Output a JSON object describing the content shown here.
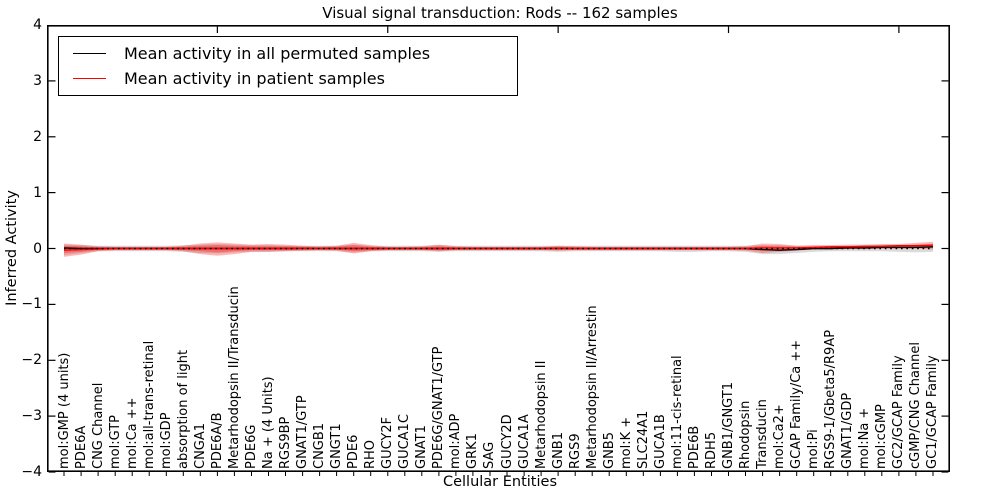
{
  "title": "Visual signal transduction: Rods -- 162 samples",
  "legend": {
    "items": [
      {
        "label": "Mean activity in all permuted samples",
        "color": "#000000"
      },
      {
        "label": "Mean activity in patient samples",
        "color": "#ff0000"
      }
    ]
  },
  "chart_data": {
    "type": "line",
    "title": "Visual signal transduction: Rods -- 162 samples",
    "xlabel": "Cellular Entities",
    "ylabel": "Inferred Activity",
    "ylim": [
      -4,
      4
    ],
    "yticks": [
      4,
      3,
      2,
      1,
      0,
      -1,
      -2,
      -3,
      -4
    ],
    "xticks_top": [
      10,
      20,
      30,
      40,
      50
    ],
    "grid": false,
    "legend_position": "upper left",
    "colors": {
      "permuted": "#000000",
      "patient": "#ff0000",
      "permuted_band": "#999999",
      "patient_band": "#ff0000",
      "zero_line": "#000000"
    },
    "categories": [
      "mol:GMP (4 units)",
      "PDE6A",
      "CNG Channel",
      "mol:GTP",
      "mol:Ca ++",
      "mol:all-trans-retinal",
      "mol:GDP",
      "absorption of light",
      "CNGA1",
      "PDE6A/B",
      "Metarhodopsin II/Transducin",
      "PDE6G",
      "Na + (4 Units)",
      "RGS9BP",
      "GNAT1/GTP",
      "CNGB1",
      "GNGT1",
      "PDE6",
      "RHO",
      "GUCY2F",
      "GUCA1C",
      "GNAT1",
      "PDE6G/GNAT1/GTP",
      "mol:ADP",
      "GRK1",
      "SAG",
      "GUCY2D",
      "GUCA1A",
      "Metarhodopsin II",
      "GNB1",
      "RGS9",
      "Metarhodopsin II/Arrestin",
      "GNB5",
      "mol:K +",
      "SLC24A1",
      "GUCA1B",
      "mol:11-cis-retinal",
      "PDE6B",
      "RDH5",
      "GNB1/GNGT1",
      "Rhodopsin",
      "Transducin",
      "mol:Ca2+",
      "GCAP Family/Ca ++",
      "mol:Pi",
      "RGS9-1/Gbeta5/R9AP",
      "GNAT1/GDP",
      "mol:Na +",
      "mol:cGMP",
      "GC2/GCAP Family",
      "cGMP/CNG Channel",
      "GC1/GCAP Family"
    ],
    "series": [
      {
        "name": "Mean activity in all permuted samples",
        "color": "#000000",
        "style": "solid",
        "values": [
          0.01,
          0,
          0,
          0,
          0,
          0,
          0,
          0,
          0,
          0,
          0,
          0,
          0,
          0,
          0,
          0,
          0,
          0,
          0,
          0,
          0,
          0,
          0,
          0,
          0,
          0,
          0,
          0,
          0,
          0,
          0,
          0,
          0,
          0,
          0,
          0,
          0,
          0,
          0,
          0,
          0,
          -0.02,
          -0.03,
          -0.02,
          0,
          0,
          0.01,
          0.01,
          0.02,
          0.02,
          0.02,
          0.03
        ]
      },
      {
        "name": "Mean activity in patient samples",
        "color": "#ff0000",
        "style": "solid",
        "values": [
          -0.03,
          -0.02,
          -0.01,
          0,
          0,
          0,
          0,
          0,
          0,
          0,
          0,
          0,
          0,
          0,
          0,
          0,
          0,
          0,
          0,
          0,
          0,
          0,
          0,
          0,
          0,
          0,
          0,
          0,
          0,
          0,
          0,
          0,
          0,
          0,
          0,
          0,
          0,
          0,
          0,
          0,
          0,
          0.01,
          0.01,
          0.01,
          0.02,
          0.03,
          0.03,
          0.04,
          0.04,
          0.05,
          0.05,
          0.06
        ]
      },
      {
        "name": "zero-reference",
        "color": "#000000",
        "style": "dotted",
        "values": [
          0,
          0,
          0,
          0,
          0,
          0,
          0,
          0,
          0,
          0,
          0,
          0,
          0,
          0,
          0,
          0,
          0,
          0,
          0,
          0,
          0,
          0,
          0,
          0,
          0,
          0,
          0,
          0,
          0,
          0,
          0,
          0,
          0,
          0,
          0,
          0,
          0,
          0,
          0,
          0,
          0,
          0,
          0,
          0,
          0,
          0,
          0,
          0,
          0,
          0,
          0,
          0
        ]
      }
    ],
    "bands": [
      {
        "name": "permuted-sample-range",
        "color": "#999999",
        "opacity": 0.35,
        "upper": [
          0.07,
          0.06,
          0.05,
          0.05,
          0.05,
          0.05,
          0.05,
          0.06,
          0.07,
          0.08,
          0.07,
          0.06,
          0.06,
          0.05,
          0.05,
          0.05,
          0.05,
          0.07,
          0.05,
          0.05,
          0.05,
          0.05,
          0.06,
          0.05,
          0.05,
          0.05,
          0.05,
          0.05,
          0.05,
          0.05,
          0.05,
          0.05,
          0.05,
          0.05,
          0.05,
          0.05,
          0.05,
          0.05,
          0.05,
          0.05,
          0.05,
          0.06,
          0.06,
          0.05,
          0.05,
          0.05,
          0.05,
          0.05,
          0.06,
          0.06,
          0.07,
          0.08
        ],
        "lower": [
          -0.12,
          -0.08,
          -0.05,
          -0.05,
          -0.05,
          -0.05,
          -0.05,
          -0.06,
          -0.08,
          -0.09,
          -0.07,
          -0.06,
          -0.06,
          -0.05,
          -0.05,
          -0.05,
          -0.05,
          -0.07,
          -0.05,
          -0.05,
          -0.05,
          -0.05,
          -0.06,
          -0.05,
          -0.05,
          -0.05,
          -0.05,
          -0.05,
          -0.05,
          -0.06,
          -0.05,
          -0.05,
          -0.05,
          -0.05,
          -0.05,
          -0.05,
          -0.06,
          -0.06,
          -0.05,
          -0.05,
          -0.06,
          -0.1,
          -0.1,
          -0.08,
          -0.06,
          -0.05,
          -0.05,
          -0.05,
          -0.05,
          -0.06,
          -0.07,
          -0.06
        ]
      },
      {
        "name": "patient-sample-range",
        "color": "#ff0000",
        "opacity": 0.28,
        "upper": [
          0.09,
          0.07,
          0.04,
          0.03,
          0.03,
          0.03,
          0.03,
          0.05,
          0.09,
          0.11,
          0.09,
          0.07,
          0.08,
          0.07,
          0.05,
          0.04,
          0.05,
          0.1,
          0.06,
          0.03,
          0.03,
          0.04,
          0.07,
          0.04,
          0.03,
          0.03,
          0.03,
          0.03,
          0.03,
          0.05,
          0.04,
          0.03,
          0.03,
          0.03,
          0.03,
          0.03,
          0.03,
          0.03,
          0.03,
          0.03,
          0.04,
          0.09,
          0.08,
          0.05,
          0.06,
          0.06,
          0.07,
          0.07,
          0.08,
          0.08,
          0.1,
          0.12
        ],
        "lower": [
          -0.15,
          -0.11,
          -0.05,
          -0.03,
          -0.03,
          -0.03,
          -0.03,
          -0.05,
          -0.1,
          -0.13,
          -0.1,
          -0.06,
          -0.06,
          -0.05,
          -0.04,
          -0.03,
          -0.04,
          -0.09,
          -0.05,
          -0.03,
          -0.03,
          -0.03,
          -0.05,
          -0.03,
          -0.03,
          -0.03,
          -0.03,
          -0.03,
          -0.03,
          -0.04,
          -0.03,
          -0.03,
          -0.03,
          -0.03,
          -0.03,
          -0.03,
          -0.03,
          -0.03,
          -0.03,
          -0.03,
          -0.04,
          -0.08,
          -0.06,
          -0.04,
          -0.02,
          -0.02,
          -0.01,
          -0.01,
          0.0,
          0.0,
          0.0,
          -0.02
        ]
      },
      {
        "name": "patient-sample-range-inner",
        "color": "#ff0000",
        "opacity": 0.3,
        "upper": [
          0.05,
          0.04,
          0.02,
          0.02,
          0.02,
          0.02,
          0.02,
          0.03,
          0.05,
          0.06,
          0.05,
          0.04,
          0.04,
          0.04,
          0.03,
          0.02,
          0.03,
          0.06,
          0.03,
          0.02,
          0.02,
          0.02,
          0.04,
          0.02,
          0.02,
          0.02,
          0.02,
          0.02,
          0.02,
          0.03,
          0.02,
          0.02,
          0.02,
          0.02,
          0.02,
          0.02,
          0.02,
          0.02,
          0.02,
          0.02,
          0.02,
          0.05,
          0.04,
          0.03,
          0.03,
          0.04,
          0.04,
          0.04,
          0.05,
          0.05,
          0.06,
          0.07
        ],
        "lower": [
          -0.08,
          -0.06,
          -0.03,
          -0.02,
          -0.02,
          -0.02,
          -0.02,
          -0.03,
          -0.05,
          -0.07,
          -0.05,
          -0.03,
          -0.03,
          -0.03,
          -0.02,
          -0.02,
          -0.02,
          -0.05,
          -0.03,
          -0.02,
          -0.02,
          -0.02,
          -0.03,
          -0.02,
          -0.02,
          -0.02,
          -0.02,
          -0.02,
          -0.02,
          -0.02,
          -0.02,
          -0.02,
          -0.02,
          -0.02,
          -0.02,
          -0.02,
          -0.02,
          -0.02,
          -0.02,
          -0.02,
          -0.02,
          -0.04,
          -0.03,
          -0.02,
          -0.01,
          -0.01,
          0.0,
          0.0,
          0.01,
          0.01,
          0.02,
          0.01
        ]
      }
    ]
  }
}
